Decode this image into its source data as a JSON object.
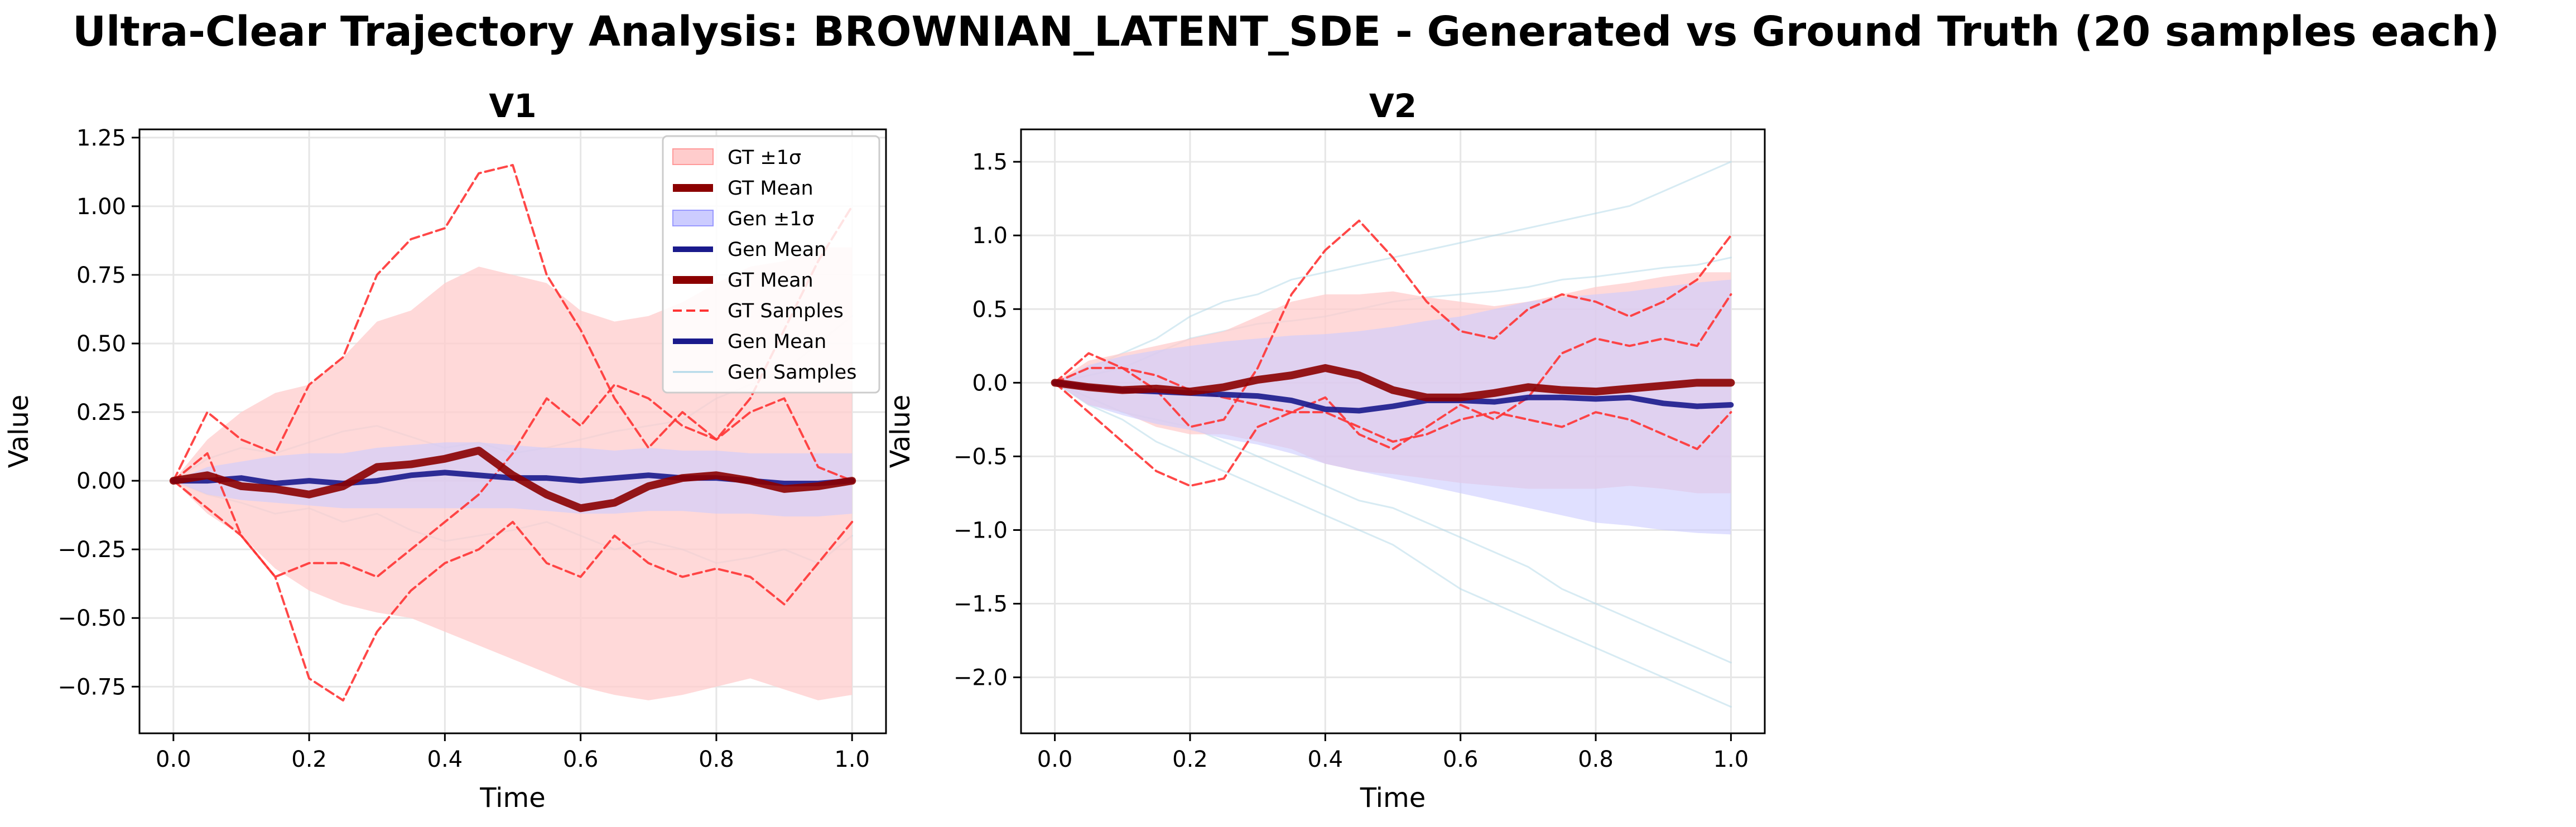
{
  "suptitle": "Ultra-Clear Trajectory Analysis: BROWNIAN_LATENT_SDE - Generated vs Ground Truth (20 samples each)",
  "colors": {
    "gt_band": "#ffcccc",
    "gen_band": "#ccccff",
    "gt_mean": "#8b0000",
    "gen_mean": "#1a1a8c",
    "gt_sample": "#ff3333",
    "gen_sample": "#b0d8e8",
    "grid": "#e6e6e6"
  },
  "chart_data": [
    {
      "type": "line",
      "title": "V1",
      "xlabel": "Time",
      "ylabel": "Value",
      "xlim": [
        -0.05,
        1.05
      ],
      "ylim": [
        -0.92,
        1.28
      ],
      "xticks": [
        "0.0",
        "0.2",
        "0.4",
        "0.6",
        "0.8",
        "1.0"
      ],
      "yticks": [
        "1.25",
        "1.00",
        "0.75",
        "0.50",
        "0.25",
        "0.00",
        "−0.25",
        "−0.50",
        "−0.75"
      ],
      "grid": true,
      "legend": {
        "placement": "top-right",
        "entries": [
          {
            "label": "GT ±1σ",
            "kind": "gt_band"
          },
          {
            "label": "GT Mean",
            "kind": "gt_mean"
          },
          {
            "label": "Gen ±1σ",
            "kind": "gen_band"
          },
          {
            "label": "Gen Mean",
            "kind": "gen_mean"
          },
          {
            "label": "GT Mean",
            "kind": "gt_mean"
          },
          {
            "label": "GT Samples",
            "kind": "gt_sample"
          },
          {
            "label": "Gen Mean",
            "kind": "gen_mean"
          },
          {
            "label": "Gen Samples",
            "kind": "gen_sample"
          }
        ]
      },
      "x": [
        0.0,
        0.05,
        0.1,
        0.15,
        0.2,
        0.25,
        0.3,
        0.35,
        0.4,
        0.45,
        0.5,
        0.55,
        0.6,
        0.65,
        0.7,
        0.75,
        0.8,
        0.85,
        0.9,
        0.95,
        1.0
      ],
      "gt_mean": [
        0.0,
        0.02,
        -0.02,
        -0.03,
        -0.05,
        -0.02,
        0.05,
        0.06,
        0.08,
        0.11,
        0.02,
        -0.05,
        -0.1,
        -0.08,
        -0.02,
        0.01,
        0.02,
        0.0,
        -0.03,
        -0.02,
        0.0
      ],
      "gt_upper": [
        0.0,
        0.15,
        0.25,
        0.32,
        0.35,
        0.45,
        0.58,
        0.62,
        0.72,
        0.78,
        0.75,
        0.72,
        0.62,
        0.58,
        0.6,
        0.65,
        0.72,
        0.78,
        0.8,
        0.85,
        0.85
      ],
      "gt_lower": [
        0.0,
        -0.12,
        -0.2,
        -0.32,
        -0.4,
        -0.45,
        -0.48,
        -0.5,
        -0.55,
        -0.6,
        -0.65,
        -0.7,
        -0.75,
        -0.78,
        -0.8,
        -0.78,
        -0.75,
        -0.72,
        -0.76,
        -0.8,
        -0.78
      ],
      "gen_mean": [
        0.0,
        0.0,
        0.01,
        -0.01,
        0.0,
        -0.01,
        0.0,
        0.02,
        0.03,
        0.02,
        0.01,
        0.01,
        0.0,
        0.01,
        0.02,
        0.01,
        0.01,
        0.0,
        -0.01,
        -0.01,
        0.0
      ],
      "gen_upper": [
        0.0,
        0.05,
        0.07,
        0.09,
        0.1,
        0.1,
        0.12,
        0.13,
        0.14,
        0.14,
        0.13,
        0.12,
        0.12,
        0.11,
        0.12,
        0.11,
        0.11,
        0.1,
        0.1,
        0.1,
        0.1
      ],
      "gen_lower": [
        0.0,
        -0.05,
        -0.07,
        -0.08,
        -0.09,
        -0.1,
        -0.1,
        -0.1,
        -0.1,
        -0.1,
        -0.1,
        -0.11,
        -0.12,
        -0.12,
        -0.11,
        -0.11,
        -0.12,
        -0.12,
        -0.13,
        -0.13,
        -0.12
      ],
      "gt_samples": [
        [
          0.0,
          0.25,
          0.15,
          0.1,
          0.35,
          0.45,
          0.75,
          0.88,
          0.92,
          1.12,
          1.15,
          0.75,
          0.55,
          0.3,
          0.12,
          0.25,
          0.15,
          0.3,
          0.55,
          0.8,
          1.0
        ],
        [
          0.0,
          -0.1,
          -0.2,
          -0.35,
          -0.72,
          -0.8,
          -0.55,
          -0.4,
          -0.3,
          -0.25,
          -0.15,
          -0.3,
          -0.35,
          -0.2,
          -0.3,
          -0.35,
          -0.32,
          -0.35,
          -0.45,
          -0.3,
          -0.15
        ],
        [
          0.0,
          0.1,
          -0.2,
          -0.35,
          -0.3,
          -0.3,
          -0.35,
          -0.25,
          -0.15,
          -0.05,
          0.1,
          0.3,
          0.2,
          0.35,
          0.3,
          0.2,
          0.15,
          0.25,
          0.3,
          0.05,
          0.0
        ]
      ],
      "gen_samples": [
        [
          0.0,
          0.08,
          0.12,
          0.1,
          0.14,
          0.18,
          0.2,
          0.16,
          0.12,
          0.14,
          0.1,
          0.12,
          0.15,
          0.18,
          0.2,
          0.22,
          0.3,
          0.35,
          0.4,
          0.5,
          0.6
        ],
        [
          0.0,
          -0.05,
          -0.08,
          -0.12,
          -0.1,
          -0.15,
          -0.12,
          -0.18,
          -0.22,
          -0.2,
          -0.18,
          -0.15,
          -0.2,
          -0.25,
          -0.22,
          -0.25,
          -0.3,
          -0.28,
          -0.25,
          -0.3,
          -0.2
        ]
      ]
    },
    {
      "type": "line",
      "title": "V2",
      "xlabel": "Time",
      "ylabel": "Value",
      "xlim": [
        -0.05,
        1.05
      ],
      "ylim": [
        -2.38,
        1.72
      ],
      "xticks": [
        "0.0",
        "0.2",
        "0.4",
        "0.6",
        "0.8",
        "1.0"
      ],
      "yticks": [
        "1.5",
        "1.0",
        "0.5",
        "0.0",
        "−0.5",
        "−1.0",
        "−1.5",
        "−2.0"
      ],
      "grid": true,
      "x": [
        0.0,
        0.05,
        0.1,
        0.15,
        0.2,
        0.25,
        0.3,
        0.35,
        0.4,
        0.45,
        0.5,
        0.55,
        0.6,
        0.65,
        0.7,
        0.75,
        0.8,
        0.85,
        0.9,
        0.95,
        1.0
      ],
      "gt_mean": [
        0.0,
        -0.03,
        -0.05,
        -0.04,
        -0.06,
        -0.03,
        0.02,
        0.05,
        0.1,
        0.05,
        -0.05,
        -0.1,
        -0.1,
        -0.07,
        -0.03,
        -0.05,
        -0.06,
        -0.04,
        -0.02,
        0.0,
        0.0
      ],
      "gt_upper": [
        0.0,
        0.15,
        0.2,
        0.25,
        0.3,
        0.35,
        0.45,
        0.55,
        0.6,
        0.6,
        0.62,
        0.58,
        0.55,
        0.52,
        0.55,
        0.6,
        0.65,
        0.68,
        0.72,
        0.75,
        0.75
      ],
      "gt_lower": [
        0.0,
        -0.15,
        -0.2,
        -0.3,
        -0.35,
        -0.35,
        -0.4,
        -0.45,
        -0.55,
        -0.6,
        -0.62,
        -0.65,
        -0.68,
        -0.7,
        -0.72,
        -0.72,
        -0.72,
        -0.7,
        -0.72,
        -0.75,
        -0.75
      ],
      "gen_mean": [
        0.0,
        -0.03,
        -0.05,
        -0.06,
        -0.07,
        -0.08,
        -0.09,
        -0.12,
        -0.18,
        -0.19,
        -0.16,
        -0.12,
        -0.12,
        -0.13,
        -0.1,
        -0.1,
        -0.11,
        -0.1,
        -0.14,
        -0.16,
        -0.15
      ],
      "gen_upper": [
        0.0,
        0.12,
        0.18,
        0.22,
        0.25,
        0.28,
        0.3,
        0.32,
        0.33,
        0.35,
        0.38,
        0.42,
        0.45,
        0.5,
        0.55,
        0.58,
        0.6,
        0.62,
        0.65,
        0.68,
        0.7
      ],
      "gen_lower": [
        0.0,
        -0.15,
        -0.22,
        -0.28,
        -0.32,
        -0.38,
        -0.42,
        -0.48,
        -0.55,
        -0.6,
        -0.65,
        -0.7,
        -0.75,
        -0.8,
        -0.85,
        -0.9,
        -0.95,
        -0.97,
        -1.0,
        -1.02,
        -1.03
      ],
      "gt_samples": [
        [
          0.0,
          0.2,
          0.1,
          -0.05,
          -0.3,
          -0.25,
          0.1,
          0.6,
          0.9,
          1.1,
          0.85,
          0.55,
          0.35,
          0.3,
          0.5,
          0.6,
          0.55,
          0.45,
          0.55,
          0.7,
          1.0
        ],
        [
          0.0,
          -0.2,
          -0.4,
          -0.6,
          -0.7,
          -0.65,
          -0.3,
          -0.2,
          -0.1,
          -0.35,
          -0.45,
          -0.3,
          -0.15,
          -0.25,
          -0.1,
          0.2,
          0.3,
          0.25,
          0.3,
          0.25,
          0.6
        ],
        [
          0.0,
          0.1,
          0.1,
          0.05,
          -0.05,
          -0.1,
          -0.15,
          -0.2,
          -0.2,
          -0.3,
          -0.4,
          -0.35,
          -0.25,
          -0.2,
          -0.25,
          -0.3,
          -0.2,
          -0.25,
          -0.35,
          -0.45,
          -0.2
        ]
      ],
      "gen_samples": [
        [
          0.0,
          0.1,
          0.2,
          0.3,
          0.45,
          0.55,
          0.6,
          0.7,
          0.75,
          0.8,
          0.85,
          0.9,
          0.95,
          1.0,
          1.05,
          1.1,
          1.15,
          1.2,
          1.3,
          1.4,
          1.5
        ],
        [
          0.0,
          -0.15,
          -0.25,
          -0.4,
          -0.5,
          -0.6,
          -0.7,
          -0.8,
          -0.9,
          -1.0,
          -1.1,
          -1.25,
          -1.4,
          -1.5,
          -1.6,
          -1.7,
          -1.8,
          -1.9,
          -2.0,
          -2.1,
          -2.2
        ],
        [
          0.0,
          -0.1,
          -0.2,
          -0.25,
          -0.3,
          -0.4,
          -0.5,
          -0.6,
          -0.7,
          -0.8,
          -0.85,
          -0.95,
          -1.05,
          -1.15,
          -1.25,
          -1.4,
          -1.5,
          -1.6,
          -1.7,
          -1.8,
          -1.9
        ],
        [
          0.0,
          0.05,
          0.1,
          0.2,
          0.3,
          0.35,
          0.4,
          0.42,
          0.45,
          0.5,
          0.55,
          0.58,
          0.6,
          0.62,
          0.65,
          0.7,
          0.72,
          0.75,
          0.78,
          0.8,
          0.85
        ]
      ]
    }
  ]
}
